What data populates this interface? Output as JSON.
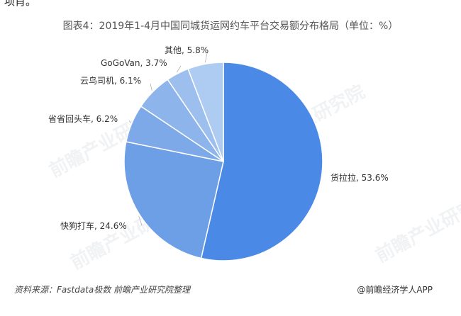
{
  "header_fragment": "项肖。",
  "footer": {
    "source": "资料来源：Fastdata极数 前瞻产业研究院整理",
    "brand": "@前瞻经济学人APP"
  },
  "watermark_text": "前瞻产业研究院",
  "chart_data": {
    "type": "pie",
    "title": "图表4：2019年1-4月中国同城货运网约车平台交易额分布格局（单位：%）",
    "unit": "%",
    "series": [
      {
        "name": "货拉拉",
        "value": 53.6,
        "label": "货拉拉, 53.6%",
        "color": "#4a8ae6"
      },
      {
        "name": "快狗打车",
        "value": 24.6,
        "label": "快狗打车, 24.6%",
        "color": "#6d9fe6"
      },
      {
        "name": "省省回头车",
        "value": 6.2,
        "label": "省省回头车, 6.2%",
        "color": "#7ea9e8"
      },
      {
        "name": "云鸟司机",
        "value": 6.1,
        "label": "云鸟司机, 6.1%",
        "color": "#8db4eb"
      },
      {
        "name": "GoGoVan",
        "value": 3.7,
        "label": "GoGoVan, 3.7%",
        "color": "#9dbfee"
      },
      {
        "name": "其他",
        "value": 5.8,
        "label": "其他, 5.8%",
        "color": "#aeccf2"
      }
    ]
  }
}
